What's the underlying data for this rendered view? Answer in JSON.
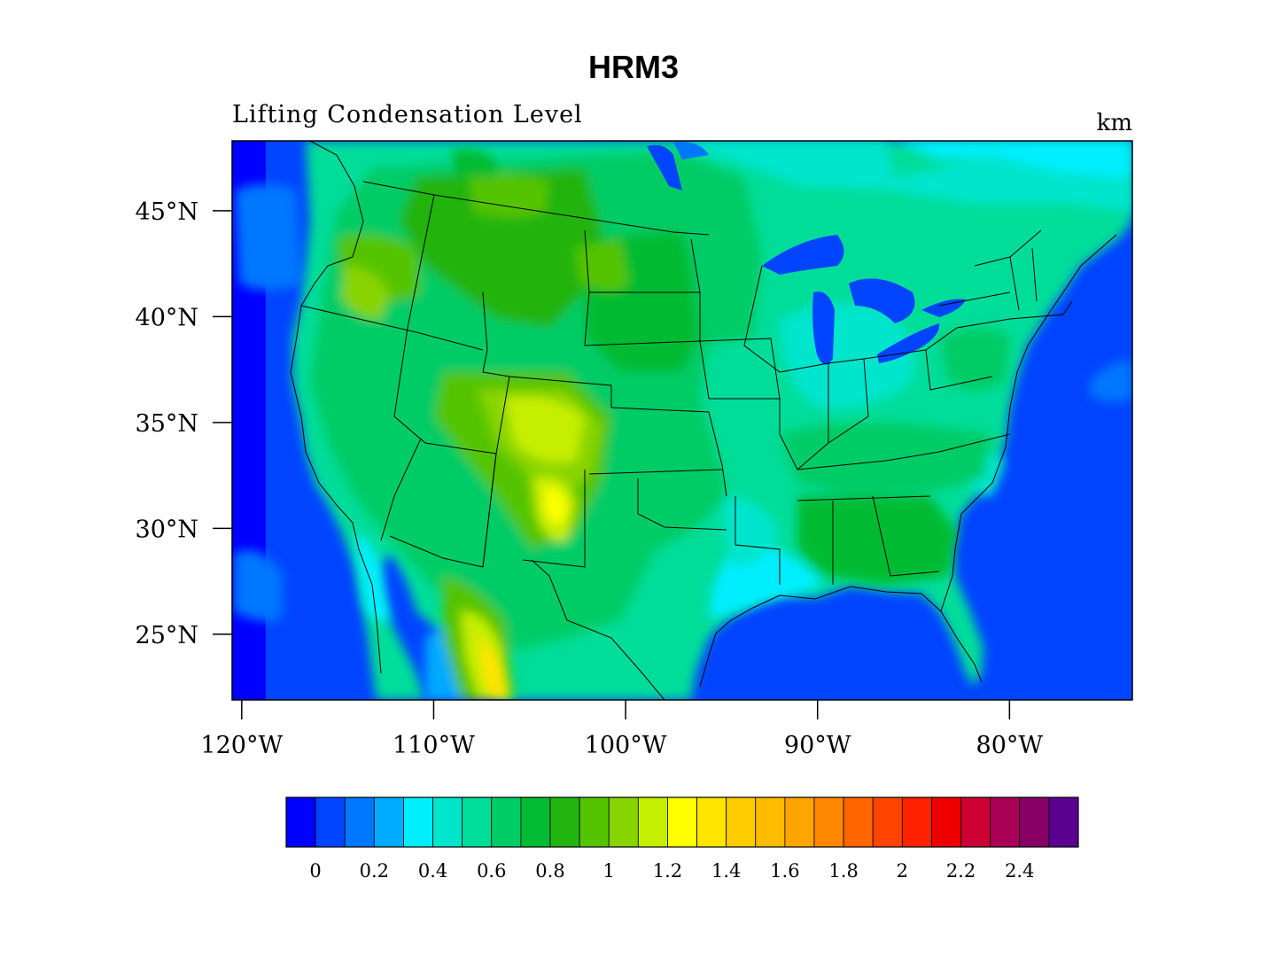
{
  "title": "HRM3",
  "subtitle_left": "Lifting Condensation Level",
  "subtitle_right": "km",
  "map": {
    "region": "Contiguous United States",
    "lon_range": [
      -120.5,
      -73.6
    ],
    "lat_range": [
      21.9,
      48.3
    ],
    "lat_ticks": [
      {
        "value": 45,
        "label": "45°N"
      },
      {
        "value": 40,
        "label": "40°N"
      },
      {
        "value": 35,
        "label": "35°N"
      },
      {
        "value": 30,
        "label": "30°N"
      },
      {
        "value": 25,
        "label": "25°N"
      }
    ],
    "lon_ticks": [
      {
        "value": -120,
        "label": "120°W"
      },
      {
        "value": -110,
        "label": "110°W"
      },
      {
        "value": -100,
        "label": "100°W"
      },
      {
        "value": -90,
        "label": "90°W"
      },
      {
        "value": -80,
        "label": "80°W"
      }
    ]
  },
  "colorbar": {
    "colors": [
      "#0000ff",
      "#0044ff",
      "#0077ff",
      "#00aaff",
      "#00eeff",
      "#00e5cc",
      "#00dd99",
      "#00cc66",
      "#00bb33",
      "#22b411",
      "#55c400",
      "#88d400",
      "#c6ee00",
      "#ffff00",
      "#ffe500",
      "#ffcc00",
      "#ffbb00",
      "#ffa500",
      "#ff8800",
      "#ff6600",
      "#ff4400",
      "#ff2200",
      "#ee0000",
      "#cc0033",
      "#aa0055",
      "#880066",
      "#5c0090"
    ],
    "labels": [
      "0",
      "0.2",
      "0.4",
      "0.6",
      "0.8",
      "1",
      "1.2",
      "1.4",
      "1.6",
      "1.8",
      "2",
      "2.2",
      "2.4"
    ]
  }
}
